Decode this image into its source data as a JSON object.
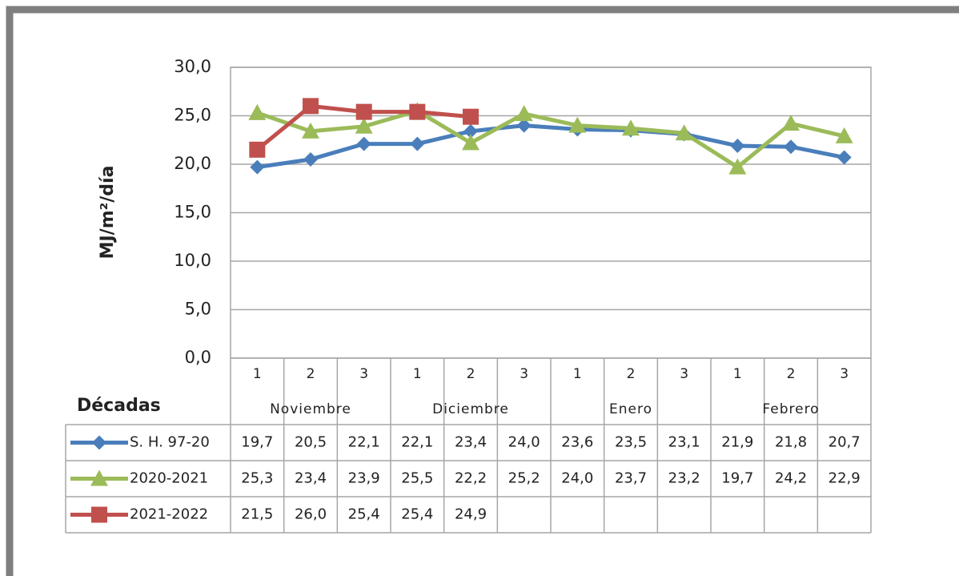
{
  "chart_data": {
    "type": "line",
    "y_label": "MJ/m²/día",
    "x_label": "Décadas",
    "categories": [
      "1",
      "2",
      "3",
      "1",
      "2",
      "3",
      "1",
      "2",
      "3",
      "1",
      "2",
      "3"
    ],
    "category_groups": [
      "Noviembre",
      "Diciembre",
      "Enero",
      "Febrero"
    ],
    "ylim": [
      0,
      30
    ],
    "yticks": [
      {
        "value": 0,
        "label": "0,0"
      },
      {
        "value": 5,
        "label": "5,0"
      },
      {
        "value": 10,
        "label": "10,0"
      },
      {
        "value": 15,
        "label": "15,0"
      },
      {
        "value": 20,
        "label": "20,0"
      },
      {
        "value": 25,
        "label": "25,0"
      },
      {
        "value": 30,
        "label": "30,0"
      }
    ],
    "grid": true,
    "series": [
      {
        "name": "S. H. 97-20",
        "color": "#4a7ebb",
        "marker": "diamond",
        "values": [
          19.7,
          20.5,
          22.1,
          22.1,
          23.4,
          24.0,
          23.6,
          23.5,
          23.1,
          21.9,
          21.8,
          20.7
        ],
        "value_labels": [
          "19,7",
          "20,5",
          "22,1",
          "22,1",
          "23,4",
          "24,0",
          "23,6",
          "23,5",
          "23,1",
          "21,9",
          "21,8",
          "20,7"
        ]
      },
      {
        "name": "2020-2021",
        "color": "#9bbb59",
        "marker": "triangle",
        "values": [
          25.3,
          23.4,
          23.9,
          25.5,
          22.2,
          25.2,
          24.0,
          23.7,
          23.2,
          19.7,
          24.2,
          22.9
        ],
        "value_labels": [
          "25,3",
          "23,4",
          "23,9",
          "25,5",
          "22,2",
          "25,2",
          "24,0",
          "23,7",
          "23,2",
          "19,7",
          "24,2",
          "22,9"
        ]
      },
      {
        "name": "2021-2022",
        "color": "#c0504d",
        "marker": "square",
        "values": [
          21.5,
          26.0,
          25.4,
          25.4,
          24.9,
          null,
          null,
          null,
          null,
          null,
          null,
          null
        ],
        "value_labels": [
          "21,5",
          "26,0",
          "25,4",
          "25,4",
          "24,9",
          null,
          null,
          null,
          null,
          null,
          null,
          null
        ]
      }
    ]
  }
}
